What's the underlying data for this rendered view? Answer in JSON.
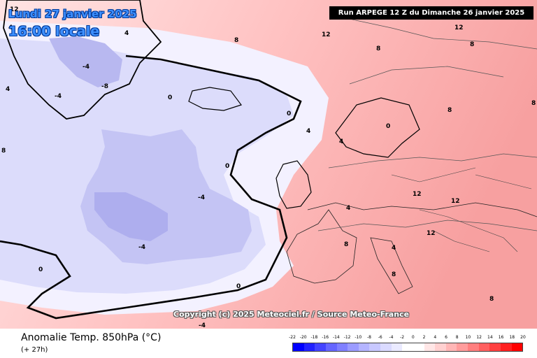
{
  "header": {
    "valid_date": "Lundi 27 janvier 2025",
    "valid_time": "16:00 locale",
    "run_info": "Run ARPEGE 12 Z du Dimanche 26 janvier 2025"
  },
  "map": {
    "copyright": "Copyright (c) 2025 Meteociel.fr / Source Meteo-France",
    "contour_labels": [
      "12",
      "4",
      "8",
      "12",
      "12",
      "-4",
      "-8",
      "-4",
      "4",
      "8",
      "0",
      "0",
      "0",
      "4",
      "4",
      "0",
      "-4",
      "0",
      "-4",
      "8",
      "8",
      "12",
      "12",
      "4",
      "8",
      "8",
      "8",
      "0",
      "-4",
      "4",
      "8",
      "12",
      "4",
      "8"
    ]
  },
  "footer": {
    "product_title": "Anomalie Temp. 850hPa (°C)",
    "lead_time": "(+ 27h)"
  },
  "legend": {
    "ticks": [
      "-22",
      "-20",
      "-18",
      "-16",
      "-14",
      "-12",
      "-10",
      "-8",
      "-6",
      "-4",
      "-2",
      "0",
      "2",
      "4",
      "6",
      "8",
      "10",
      "12",
      "14",
      "16",
      "18",
      "20"
    ],
    "colors": [
      "#0000ff",
      "#2222ff",
      "#4444ff",
      "#6666ff",
      "#8080ff",
      "#9b9bff",
      "#b4b4ff",
      "#c8c8ff",
      "#dadaff",
      "#eaeaff",
      "#ffffff",
      "#ffffff",
      "#ffe6e6",
      "#ffd0d0",
      "#ffb6b6",
      "#ff9c9c",
      "#ff7f7f",
      "#ff6060",
      "#ff4040",
      "#ff2020",
      "#ff0000"
    ]
  }
}
